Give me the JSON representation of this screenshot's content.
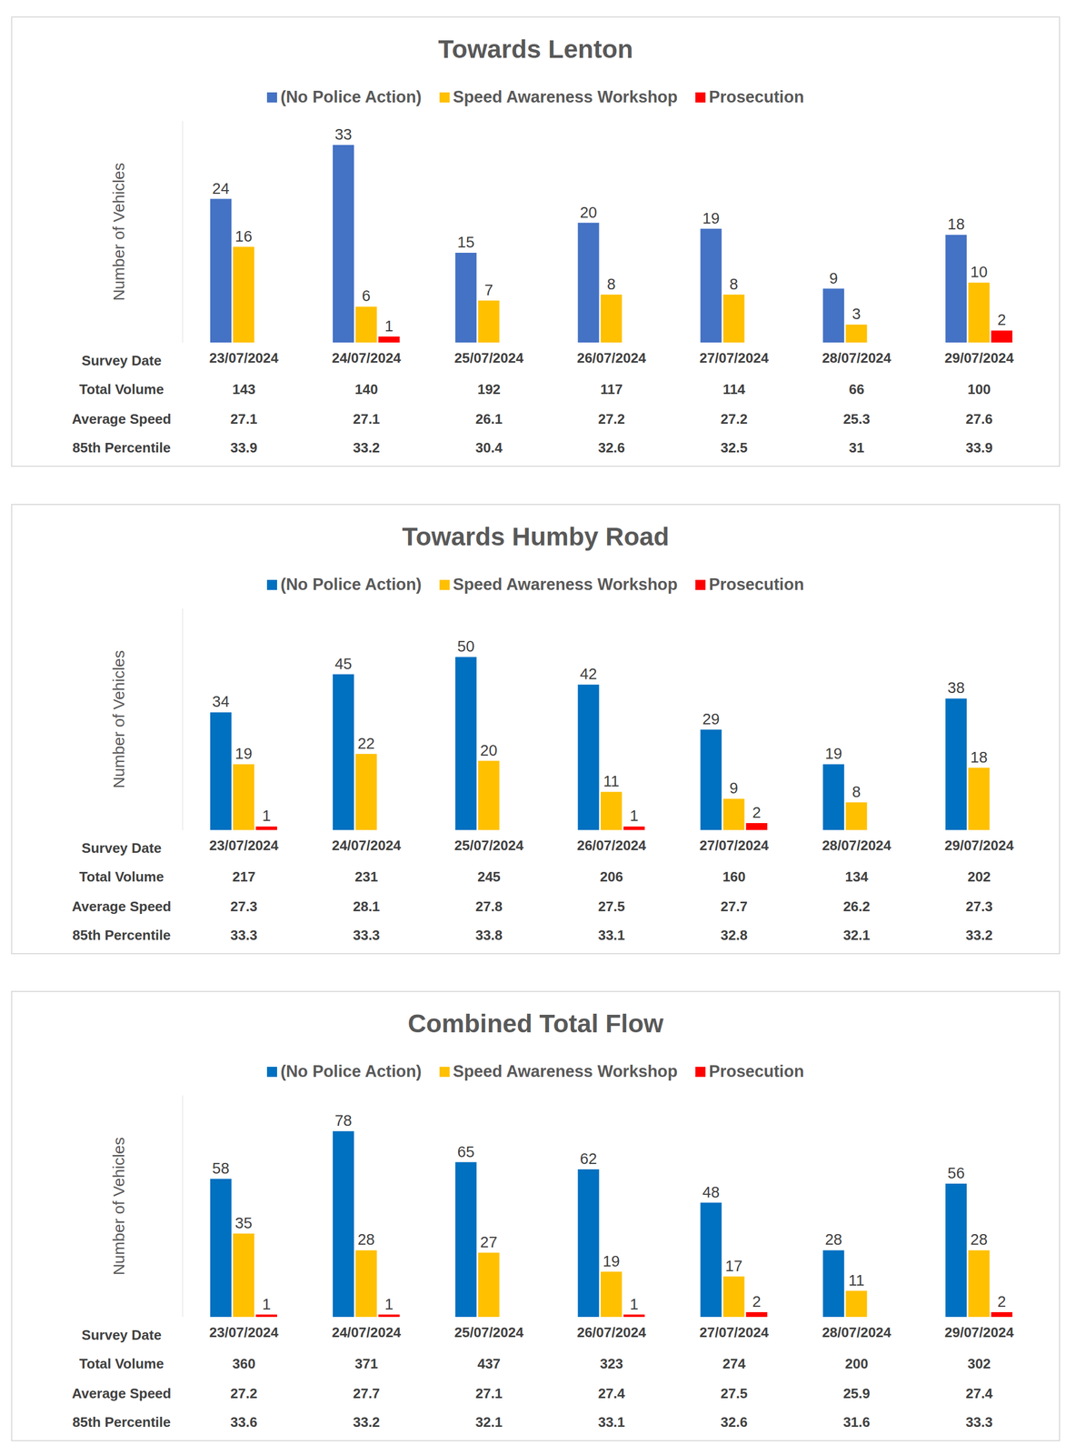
{
  "chart_data": [
    {
      "type": "bar",
      "title": "Towards Lenton",
      "y_label": "Number of Vehicles",
      "categories": [
        "23/07/2024",
        "24/07/2024",
        "25/07/2024",
        "26/07/2024",
        "27/07/2024",
        "28/07/2024",
        "29/07/2024"
      ],
      "series": [
        {
          "name": "(No Police Action)",
          "color": "#4472c4",
          "values": [
            24,
            33,
            15,
            20,
            19,
            9,
            18
          ]
        },
        {
          "name": "Speed Awareness Workshop",
          "color": "#ffc000",
          "values": [
            16,
            6,
            7,
            8,
            8,
            3,
            10
          ]
        },
        {
          "name": "Prosecution",
          "color": "#ff0000",
          "values": [
            0,
            1,
            0,
            0,
            0,
            0,
            2
          ]
        }
      ],
      "ylim": [
        0,
        37
      ],
      "data_labels": true,
      "tick_labels": "x",
      "legend": "top",
      "table": {
        "header": "Survey Date",
        "rows": [
          {
            "label": "Total Volume",
            "values": [
              143,
              140,
              192,
              117,
              114,
              66,
              100
            ]
          },
          {
            "label": "Average Speed",
            "values": [
              27.1,
              27.1,
              26.1,
              27.2,
              27.2,
              25.3,
              27.6
            ]
          },
          {
            "label": "85th Percentile",
            "values": [
              33.9,
              33.2,
              30.4,
              32.6,
              32.5,
              31,
              33.9
            ]
          }
        ]
      }
    },
    {
      "type": "bar",
      "title": "Towards Humby Road",
      "y_label": "Number of Vehicles",
      "categories": [
        "23/07/2024",
        "24/07/2024",
        "25/07/2024",
        "26/07/2024",
        "27/07/2024",
        "28/07/2024",
        "29/07/2024"
      ],
      "series": [
        {
          "name": "(No Police Action)",
          "color": "#0070c0",
          "values": [
            34,
            45,
            50,
            42,
            29,
            19,
            38
          ]
        },
        {
          "name": "Speed Awareness Workshop",
          "color": "#ffc000",
          "values": [
            19,
            22,
            20,
            11,
            9,
            8,
            18
          ]
        },
        {
          "name": "Prosecution",
          "color": "#ff0000",
          "values": [
            1,
            0,
            0,
            1,
            2,
            0,
            0
          ]
        }
      ],
      "ylim": [
        0,
        64
      ],
      "data_labels": true,
      "tick_labels": "x",
      "legend": "top",
      "table": {
        "header": "Survey Date",
        "rows": [
          {
            "label": "Total Volume",
            "values": [
              217,
              231,
              245,
              206,
              160,
              134,
              202
            ]
          },
          {
            "label": "Average Speed",
            "values": [
              27.3,
              28.1,
              27.8,
              27.5,
              27.7,
              26.2,
              27.3
            ]
          },
          {
            "label": "85th Percentile",
            "values": [
              33.3,
              33.3,
              33.8,
              33.1,
              32.8,
              32.1,
              33.2
            ]
          }
        ]
      }
    },
    {
      "type": "bar",
      "title": "Combined Total Flow",
      "y_label": "Number of Vehicles",
      "categories": [
        "23/07/2024",
        "24/07/2024",
        "25/07/2024",
        "26/07/2024",
        "27/07/2024",
        "28/07/2024",
        "29/07/2024"
      ],
      "series": [
        {
          "name": "(No Police Action)",
          "color": "#0070c0",
          "values": [
            58,
            78,
            65,
            62,
            48,
            28,
            56
          ]
        },
        {
          "name": "Speed Awareness Workshop",
          "color": "#ffc000",
          "values": [
            35,
            28,
            27,
            19,
            17,
            11,
            28
          ]
        },
        {
          "name": "Prosecution",
          "color": "#ff0000",
          "values": [
            1,
            1,
            0,
            1,
            2,
            0,
            2
          ]
        }
      ],
      "ylim": [
        0,
        93
      ],
      "data_labels": true,
      "tick_labels": "x",
      "legend": "top",
      "table": {
        "header": "Survey Date",
        "rows": [
          {
            "label": "Total Volume",
            "values": [
              360,
              371,
              437,
              323,
              274,
              200,
              302
            ]
          },
          {
            "label": "Average Speed",
            "values": [
              27.2,
              27.7,
              27.1,
              27.4,
              27.5,
              25.9,
              27.4
            ]
          },
          {
            "label": "85th Percentile",
            "values": [
              33.6,
              33.2,
              32.1,
              33.1,
              32.6,
              31.6,
              33.3
            ]
          }
        ]
      }
    }
  ]
}
